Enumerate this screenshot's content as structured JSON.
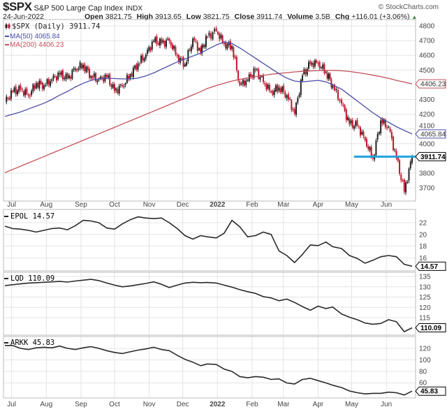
{
  "header": {
    "symbol": "$SPX",
    "name": "S&P 500 Large Cap Index",
    "exchange": "INDX",
    "brand": "© StockCharts.com",
    "date": "24-Jun-2022",
    "open_label": "Open",
    "open": "3821.75",
    "high_label": "High",
    "high": "3913.65",
    "low_label": "Low",
    "low": "3821.75",
    "close_label": "Close",
    "close": "3911.74",
    "volume_label": "Volume",
    "volume": "3.5B",
    "chg_label": "Chg",
    "chg": "+116.01 (+3.06%)",
    "chg_arrow": "▲"
  },
  "colors": {
    "up_candle": "#222222",
    "down_candle": "#c0142c",
    "ma50": "#4a4ea6",
    "ma200": "#c4505c",
    "line": "#2a2a2a",
    "support_line": "#1fa3dc",
    "grid": "#e4e4e4"
  },
  "chart_data": [
    {
      "type": "candlestick",
      "title": "$SPX (Daily) 3911.74",
      "legend": [
        "$SPX (Daily) 3911.74",
        "MA(50) 4065.84",
        "MA(200) 4406.23"
      ],
      "legend_placement": "top-left",
      "grid": true,
      "ylim": [
        3620,
        4840
      ],
      "yticks": [
        4800,
        4700,
        4600,
        4500,
        4300,
        4200,
        4100,
        4000,
        3800,
        3700
      ],
      "x": [
        "2021-06-25",
        "2021-07-02",
        "2021-07-09",
        "2021-07-16",
        "2021-07-23",
        "2021-07-30",
        "2021-08-06",
        "2021-08-13",
        "2021-08-20",
        "2021-08-27",
        "2021-09-03",
        "2021-09-10",
        "2021-09-17",
        "2021-09-24",
        "2021-10-01",
        "2021-10-08",
        "2021-10-15",
        "2021-10-22",
        "2021-10-29",
        "2021-11-05",
        "2021-11-12",
        "2021-11-19",
        "2021-11-26",
        "2021-12-03",
        "2021-12-10",
        "2021-12-17",
        "2021-12-23",
        "2021-12-31",
        "2022-01-07",
        "2022-01-14",
        "2022-01-21",
        "2022-01-28",
        "2022-02-04",
        "2022-02-11",
        "2022-02-18",
        "2022-02-25",
        "2022-03-04",
        "2022-03-11",
        "2022-03-18",
        "2022-03-25",
        "2022-04-01",
        "2022-04-08",
        "2022-04-14",
        "2022-04-22",
        "2022-04-29",
        "2022-05-06",
        "2022-05-13",
        "2022-05-20",
        "2022-05-27",
        "2022-06-03",
        "2022-06-10",
        "2022-06-17",
        "2022-06-24"
      ],
      "close": [
        4281,
        4352,
        4370,
        4327,
        4412,
        4395,
        4437,
        4468,
        4442,
        4509,
        4535,
        4459,
        4433,
        4455,
        4357,
        4391,
        4471,
        4545,
        4605,
        4697,
        4682,
        4698,
        4595,
        4538,
        4712,
        4620,
        4725,
        4766,
        4677,
        4662,
        4398,
        4432,
        4500,
        4419,
        4349,
        4385,
        4329,
        4204,
        4463,
        4543,
        4546,
        4488,
        4393,
        4272,
        4132,
        4123,
        4023,
        3901,
        4158,
        4109,
        3901,
        3675,
        3911.74
      ],
      "ma50": [
        4185,
        4200,
        4215,
        4235,
        4255,
        4275,
        4300,
        4330,
        4355,
        4385,
        4410,
        4430,
        4440,
        4445,
        4442,
        4440,
        4440,
        4445,
        4460,
        4480,
        4505,
        4530,
        4555,
        4575,
        4595,
        4615,
        4640,
        4670,
        4690,
        4680,
        4650,
        4615,
        4580,
        4545,
        4510,
        4475,
        4445,
        4425,
        4420,
        4425,
        4430,
        4420,
        4400,
        4370,
        4330,
        4290,
        4250,
        4210,
        4175,
        4145,
        4115,
        4090,
        4065.84
      ],
      "ma200": [
        3803,
        3825,
        3847,
        3869,
        3891,
        3913,
        3935,
        3957,
        3979,
        4001,
        4023,
        4045,
        4067,
        4089,
        4111,
        4133,
        4155,
        4177,
        4199,
        4221,
        4243,
        4265,
        4287,
        4309,
        4331,
        4353,
        4375,
        4395,
        4410,
        4425,
        4437,
        4447,
        4456,
        4464,
        4471,
        4477,
        4482,
        4487,
        4491,
        4494,
        4496,
        4497,
        4497,
        4495,
        4490,
        4483,
        4475,
        4465,
        4455,
        4443,
        4430,
        4418,
        4406.23
      ],
      "last_labels": {
        "ma200": "4406.23",
        "ma50": "4065.84",
        "close": "3911.74"
      },
      "support_level": 3911.74
    },
    {
      "type": "line",
      "legend": "EPOL 14.57",
      "last_label": "14.57",
      "ylim": [
        13.5,
        24.3
      ],
      "yticks": [
        22,
        20,
        18,
        16
      ],
      "values": [
        21.4,
        21.0,
        20.9,
        20.7,
        20.4,
        20.7,
        21.0,
        21.1,
        20.8,
        21.5,
        22.4,
        22.3,
        22.0,
        21.1,
        20.9,
        21.8,
        22.5,
        23.0,
        22.8,
        22.7,
        22.8,
        22.0,
        21.0,
        19.8,
        19.2,
        19.8,
        19.6,
        19.4,
        20.2,
        22.4,
        21.3,
        19.6,
        19.8,
        20.4,
        20.0,
        17.2,
        16.4,
        15.2,
        16.6,
        18.2,
        18.1,
        18.7,
        17.9,
        17.6,
        16.4,
        15.9,
        15.1,
        15.6,
        16.2,
        16.4,
        16.2,
        14.9,
        14.57
      ]
    },
    {
      "type": "line",
      "legend": "LQD 110.09",
      "last_label": "110.09",
      "ylim": [
        105,
        137
      ],
      "yticks": [
        135,
        130,
        125,
        120,
        115
      ],
      "values": [
        130.6,
        131.0,
        131.4,
        131.8,
        132.0,
        132.2,
        132.4,
        132.6,
        132.3,
        132.8,
        133.2,
        133.6,
        133.0,
        131.8,
        130.8,
        130.0,
        130.4,
        131.0,
        131.6,
        132.4,
        131.2,
        129.6,
        130.8,
        131.8,
        132.2,
        132.0,
        132.1,
        131.8,
        130.8,
        129.8,
        128.6,
        127.6,
        126.8,
        125.2,
        124.6,
        123.2,
        124.0,
        122.4,
        120.4,
        118.6,
        120.6,
        119.4,
        120.2,
        116.8,
        115.2,
        114.0,
        112.4,
        111.8,
        112.2,
        114.0,
        113.0,
        108.2,
        110.09
      ]
    },
    {
      "type": "line",
      "legend": "ARKK 45.83",
      "last_label": "45.83",
      "ylim": [
        35,
        140
      ],
      "yticks": [
        120,
        100,
        80,
        60
      ],
      "values": [
        125,
        125,
        120,
        118,
        121,
        122,
        121,
        124,
        120,
        118,
        121,
        123,
        120,
        116,
        113,
        111,
        114,
        117,
        119,
        122,
        118,
        116,
        108,
        101,
        96,
        90,
        93,
        92,
        84,
        80,
        71,
        69,
        71,
        70,
        66,
        67,
        60,
        58,
        66,
        68,
        64,
        60,
        56,
        52,
        46,
        43,
        41,
        42,
        42,
        44,
        43,
        39,
        45.83
      ]
    }
  ],
  "x_axis": {
    "months": [
      {
        "label": "Jul",
        "date": "2021-07-01"
      },
      {
        "label": "Aug",
        "date": "2021-08-01"
      },
      {
        "label": "Sep",
        "date": "2021-09-01"
      },
      {
        "label": "Oct",
        "date": "2021-10-01"
      },
      {
        "label": "Nov",
        "date": "2021-11-01"
      },
      {
        "label": "Dec",
        "date": "2021-12-01"
      },
      {
        "label": "2022",
        "date": "2022-01-01",
        "bold": true
      },
      {
        "label": "Feb",
        "date": "2022-02-01"
      },
      {
        "label": "Mar",
        "date": "2022-03-01"
      },
      {
        "label": "Apr",
        "date": "2022-04-01"
      },
      {
        "label": "May",
        "date": "2022-05-01"
      },
      {
        "label": "Jun",
        "date": "2022-06-01"
      }
    ]
  }
}
